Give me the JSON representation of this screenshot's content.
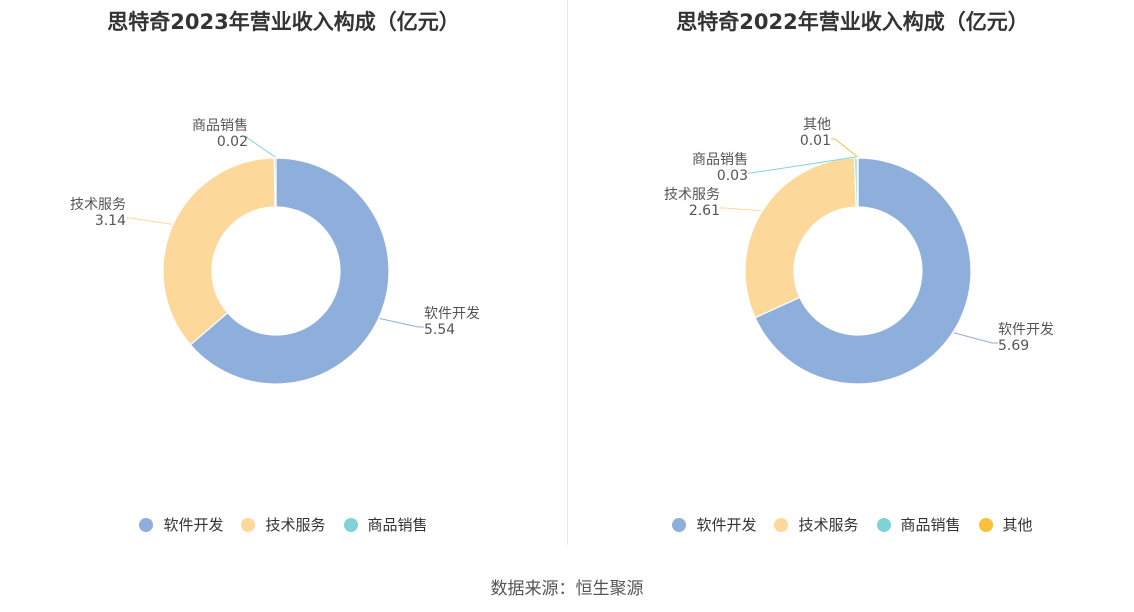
{
  "colors": {
    "software": "#8eaedb",
    "services": "#fdd89b",
    "goods": "#7fd3d6",
    "other": "#f7c13a"
  },
  "source": "数据来源：恒生聚源",
  "chart_data": [
    {
      "type": "pie",
      "title": "思特奇2023年营业收入构成（亿元）",
      "series": [
        {
          "name": "软件开发",
          "value": 5.54,
          "label": "5.54",
          "color_key": "software"
        },
        {
          "name": "技术服务",
          "value": 3.14,
          "label": "3.14",
          "color_key": "services"
        },
        {
          "name": "商品销售",
          "value": 0.02,
          "label": "0.02",
          "color_key": "goods"
        }
      ],
      "legend": [
        "软件开发",
        "技术服务",
        "商品销售"
      ],
      "legend_position": "bottom"
    },
    {
      "type": "pie",
      "title": "思特奇2022年营业收入构成（亿元）",
      "series": [
        {
          "name": "软件开发",
          "value": 5.69,
          "label": "5.69",
          "color_key": "software"
        },
        {
          "name": "技术服务",
          "value": 2.61,
          "label": "2.61",
          "color_key": "services"
        },
        {
          "name": "商品销售",
          "value": 0.03,
          "label": "0.03",
          "color_key": "goods"
        },
        {
          "name": "其他",
          "value": 0.01,
          "label": "0.01",
          "color_key": "other"
        }
      ],
      "legend": [
        "软件开发",
        "技术服务",
        "商品销售",
        "其他"
      ],
      "legend_position": "bottom"
    }
  ]
}
